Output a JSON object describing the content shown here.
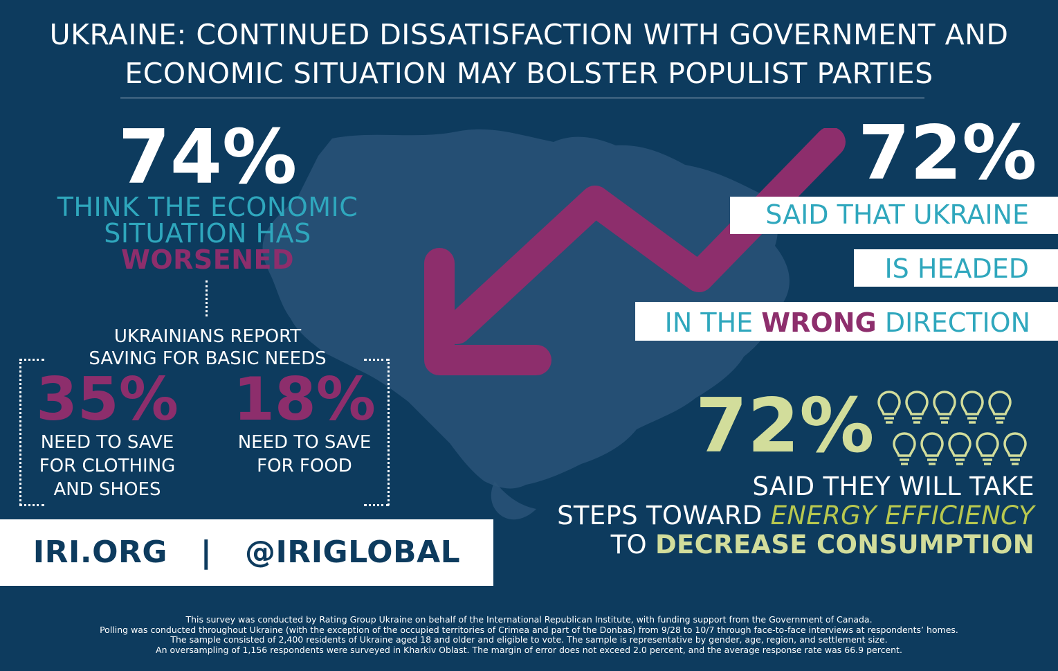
{
  "title": {
    "line1": "UKRAINE: CONTINUED DISSATISFACTION WITH GOVERNMENT AND",
    "line2": "ECONOMIC SITUATION MAY BOLSTER POPULIST PARTIES"
  },
  "economy": {
    "percent": "74%",
    "line1": "THINK THE ECONOMIC",
    "line2": "SITUATION HAS",
    "highlight": "WORSENED"
  },
  "saving": {
    "heading1": "UKRAINIANS REPORT",
    "heading2": "SAVING FOR BASIC NEEDS",
    "clothing": {
      "percent": "35%",
      "line1": "NEED TO SAVE",
      "line2": "FOR CLOTHING",
      "line3": "AND SHOES"
    },
    "food": {
      "percent": "18%",
      "line1": "NEED TO SAVE",
      "line2": "FOR FOOD"
    }
  },
  "direction": {
    "percent": "72%",
    "line1": "SAID THAT UKRAINE",
    "line2": "IS HEADED",
    "line3_pre": "IN THE",
    "line3_highlight": "WRONG",
    "line3_post": "DIRECTION"
  },
  "energy": {
    "percent": "72%",
    "line1": "SAID THEY WILL TAKE",
    "line2_pre": "STEPS TOWARD",
    "line2_highlight": "ENERGY EFFICIENCY",
    "line3_pre": "TO",
    "line3_highlight": "DECREASE CONSUMPTION",
    "bulbs_total": 10,
    "bulbs_icon": "lightbulb-icon"
  },
  "footer": {
    "site": "IRI.ORG",
    "separator": "|",
    "handle": "@IRIGLOBAL"
  },
  "methodology": {
    "line1": "This survey was conducted by Rating Group Ukraine on behalf of the International Republican Institute, with funding support from the Government of Canada.",
    "line2": "Polling was conducted throughout Ukraine (with the exception of the occupied territories of Crimea and part of the Donbas) from 9/28 to 10/7 through face-to-face interviews at respondents’ homes.",
    "line3": "The sample consisted of 2,400 residents of Ukraine aged 18 and older and eligible to vote. The sample is representative by gender, age, region, and settlement size.",
    "line4": "An oversampling of 1,156 respondents were surveyed in Kharkiv Oblast. The margin of error does not exceed 2.0 percent, and the average response rate was 66.9 percent."
  },
  "colors": {
    "background": "#0d3b5e",
    "map": "#2a5478",
    "teal": "#2fa7bd",
    "magenta": "#8d2e6c",
    "lime": "#d2dd9b",
    "olive": "#b8c84f"
  }
}
